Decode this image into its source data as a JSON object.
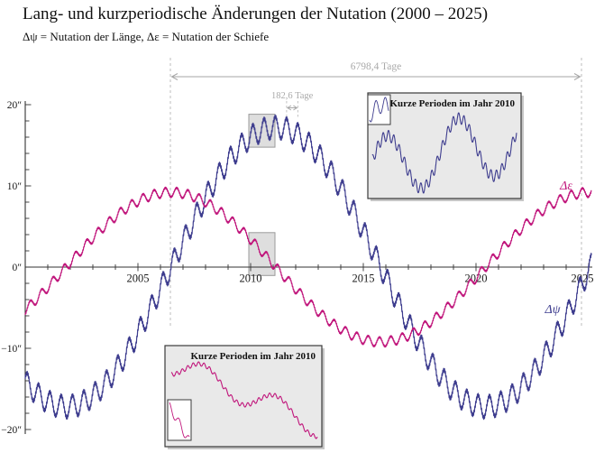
{
  "header": {
    "title": "Lang- und kurzperiodische Änderungen der Nutation (2000 – 2025)",
    "subtitle": "Δψ = Nutation der Länge, Δε = Nutation der Schiefe"
  },
  "chart_data": {
    "type": "line",
    "title": "Lang- und kurzperiodische Änderungen der Nutation (2000 – 2025)",
    "subtitle": "Δψ = Nutation der Länge, Δε = Nutation der Schiefe",
    "xlabel": "",
    "ylabel": "",
    "grid": false,
    "x_range": [
      2000,
      2025.12
    ],
    "y_range": [
      -21,
      21
    ],
    "x_ticks_major": [
      2005,
      2010,
      2015,
      2020,
      2025
    ],
    "x_tick_labels": [
      "2005",
      "2010",
      "2015",
      "2020",
      "2025"
    ],
    "x_minor_step_years": 1,
    "y_ticks_major": [
      20,
      10,
      0,
      -10,
      -20
    ],
    "y_tick_labels": [
      "20″",
      "10″",
      "0″",
      "−10″",
      "−20″"
    ],
    "y_minor_step_arcsec": 2,
    "series": [
      {
        "name": "delta-psi",
        "label": "Δψ",
        "description": "Nutation der Länge",
        "color": "#3d3c8e",
        "harmonics": [
          {
            "fn": "sin",
            "amplitude": 17.2,
            "period_days": 6798.4,
            "period_years": 18.6127,
            "phase_deg": -125.04
          },
          {
            "fn": "sin",
            "amplitude": 1.32,
            "period_days": 182.62,
            "period_years": 0.5,
            "phase_deg": 20.94
          },
          {
            "fn": "sin",
            "amplitude": 0.23,
            "period_days": 13.66,
            "period_years": 0.0374,
            "phase_deg": -46.8
          }
        ]
      },
      {
        "name": "delta-epsilon",
        "label": "Δε",
        "description": "Nutation der Schiefe",
        "color": "#c0157b",
        "harmonics": [
          {
            "fn": "cos",
            "amplitude": 9.21,
            "period_days": 6798.4,
            "period_years": 18.6127,
            "phase_deg": -125.04
          },
          {
            "fn": "cos",
            "amplitude": 0.573,
            "period_days": 182.62,
            "period_years": 0.5,
            "phase_deg": 200.94
          },
          {
            "fn": "cos",
            "amplitude": 0.098,
            "period_days": 13.66,
            "period_years": 0.0374,
            "phase_deg": -136.8
          }
        ]
      }
    ],
    "annotations": {
      "long_period": {
        "label": "6798,4 Tage",
        "from_year": 2006.44,
        "to_year": 2024.68
      },
      "semiannual": {
        "label": "182,6 Tage",
        "peak_year_1": 2011.596,
        "peak_year_2": 2012.096
      }
    },
    "insets": [
      {
        "id": "inset-dpsi-2010",
        "title": "Kurze Perioden im Jahr 2010",
        "series": "delta-psi",
        "window": [
          2010,
          2011
        ],
        "mini_window": [
          2010.05,
          2010.125
        ]
      },
      {
        "id": "inset-deps-2010",
        "title": "Kurze Perioden im Jahr 2010",
        "series": "delta-epsilon",
        "window": [
          2010,
          2011
        ],
        "mini_window": [
          2010.3,
          2010.375
        ]
      }
    ]
  }
}
